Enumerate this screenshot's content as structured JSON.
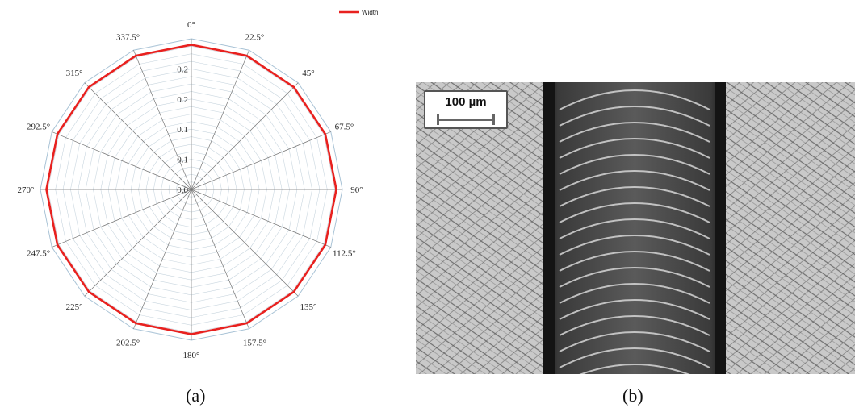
{
  "chart_data": {
    "type": "polar-line",
    "directions": [
      "0°",
      "22.5°",
      "45°",
      "67.5°",
      "90°",
      "112.5°",
      "135°",
      "157.5°",
      "180°",
      "202.5°",
      "225°",
      "247.5°",
      "270°",
      "292.5°",
      "315°",
      "337.5°"
    ],
    "series": [
      {
        "name": "Width",
        "color": "#e8211f",
        "values": [
          0.24,
          0.24,
          0.24,
          0.24,
          0.24,
          0.24,
          0.24,
          0.24,
          0.24,
          0.24,
          0.24,
          0.24,
          0.24,
          0.24,
          0.24,
          0.24
        ]
      }
    ],
    "radial_range": [
      0,
      0.25
    ],
    "radial_tick_values": [
      0,
      0.05,
      0.1,
      0.15,
      0.2
    ],
    "radial_tick_labels": [
      "0.0",
      "0.1",
      "0.1",
      "0.2",
      "0.2"
    ],
    "grid": true,
    "legend": "top-right"
  },
  "panels": {
    "a_label": "(a)",
    "b_label": "(b)"
  },
  "micrograph": {
    "scale_bar_label": "100 µm"
  }
}
